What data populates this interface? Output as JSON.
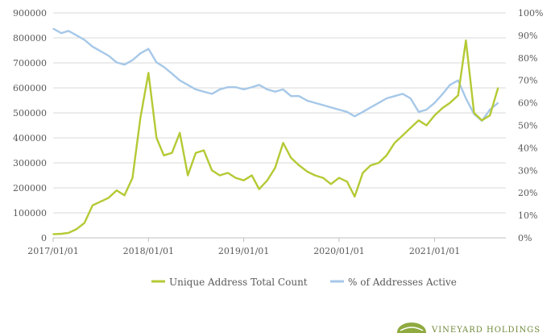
{
  "chart_data": {
    "type": "line",
    "title": "",
    "xlabel": "",
    "ylabel": "",
    "x_ticks": [
      "2017/01/01",
      "2018/01/01",
      "2019/01/01",
      "2020/01/01",
      "2021/01/01"
    ],
    "x_range": [
      "2017/01/01",
      "2021/10/01"
    ],
    "ylim_left": [
      0,
      900000
    ],
    "left_ticks": [
      "0",
      "100000",
      "200000",
      "300000",
      "400000",
      "500000",
      "600000",
      "700000",
      "800000",
      "900000"
    ],
    "ylim_right": [
      0,
      100
    ],
    "right_ticks": [
      "0%",
      "10%",
      "20%",
      "30%",
      "40%",
      "50%",
      "60%",
      "70%",
      "80%",
      "90%",
      "100%"
    ],
    "grid": "horizontal",
    "legend_position": "bottom",
    "series": [
      {
        "name": "Unique Address Total Count",
        "axis": "left",
        "color": "#b5c934",
        "points": [
          [
            "2017/01/01",
            15000
          ],
          [
            "2017/02/01",
            16000
          ],
          [
            "2017/03/01",
            20000
          ],
          [
            "2017/04/01",
            35000
          ],
          [
            "2017/05/01",
            60000
          ],
          [
            "2017/06/01",
            130000
          ],
          [
            "2017/07/01",
            145000
          ],
          [
            "2017/08/01",
            160000
          ],
          [
            "2017/09/01",
            190000
          ],
          [
            "2017/10/01",
            170000
          ],
          [
            "2017/11/01",
            240000
          ],
          [
            "2017/12/01",
            480000
          ],
          [
            "2018/01/01",
            660000
          ],
          [
            "2018/02/01",
            400000
          ],
          [
            "2018/03/01",
            330000
          ],
          [
            "2018/04/01",
            340000
          ],
          [
            "2018/05/01",
            420000
          ],
          [
            "2018/06/01",
            250000
          ],
          [
            "2018/07/01",
            340000
          ],
          [
            "2018/08/01",
            350000
          ],
          [
            "2018/09/01",
            270000
          ],
          [
            "2018/10/01",
            250000
          ],
          [
            "2018/11/01",
            260000
          ],
          [
            "2018/12/01",
            240000
          ],
          [
            "2019/01/01",
            230000
          ],
          [
            "2019/02/01",
            250000
          ],
          [
            "2019/03/01",
            195000
          ],
          [
            "2019/04/01",
            230000
          ],
          [
            "2019/05/01",
            280000
          ],
          [
            "2019/06/01",
            380000
          ],
          [
            "2019/07/01",
            320000
          ],
          [
            "2019/08/01",
            290000
          ],
          [
            "2019/09/01",
            265000
          ],
          [
            "2019/10/01",
            250000
          ],
          [
            "2019/11/01",
            240000
          ],
          [
            "2019/12/01",
            215000
          ],
          [
            "2020/01/01",
            240000
          ],
          [
            "2020/02/01",
            225000
          ],
          [
            "2020/03/01",
            165000
          ],
          [
            "2020/04/01",
            260000
          ],
          [
            "2020/05/01",
            290000
          ],
          [
            "2020/06/01",
            300000
          ],
          [
            "2020/07/01",
            330000
          ],
          [
            "2020/08/01",
            380000
          ],
          [
            "2020/09/01",
            410000
          ],
          [
            "2020/10/01",
            440000
          ],
          [
            "2020/11/01",
            470000
          ],
          [
            "2020/12/01",
            450000
          ],
          [
            "2021/01/01",
            490000
          ],
          [
            "2021/02/01",
            520000
          ],
          [
            "2021/03/01",
            540000
          ],
          [
            "2021/04/01",
            570000
          ],
          [
            "2021/05/01",
            790000
          ],
          [
            "2021/06/01",
            500000
          ],
          [
            "2021/07/01",
            470000
          ],
          [
            "2021/08/01",
            490000
          ],
          [
            "2021/09/01",
            600000
          ]
        ]
      },
      {
        "name": "% of Addresses Active",
        "axis": "right",
        "color": "#a6c8e8",
        "points": [
          [
            "2017/01/01",
            93
          ],
          [
            "2017/02/01",
            91
          ],
          [
            "2017/03/01",
            92
          ],
          [
            "2017/04/01",
            90
          ],
          [
            "2017/05/01",
            88
          ],
          [
            "2017/06/01",
            85
          ],
          [
            "2017/07/01",
            83
          ],
          [
            "2017/08/01",
            81
          ],
          [
            "2017/09/01",
            78
          ],
          [
            "2017/10/01",
            77
          ],
          [
            "2017/11/01",
            79
          ],
          [
            "2017/12/01",
            82
          ],
          [
            "2018/01/01",
            84
          ],
          [
            "2018/02/01",
            78
          ],
          [
            "2018/03/01",
            76
          ],
          [
            "2018/04/01",
            73
          ],
          [
            "2018/05/01",
            70
          ],
          [
            "2018/06/01",
            68
          ],
          [
            "2018/07/01",
            66
          ],
          [
            "2018/08/01",
            65
          ],
          [
            "2018/09/01",
            64
          ],
          [
            "2018/10/01",
            66
          ],
          [
            "2018/11/01",
            67
          ],
          [
            "2018/12/01",
            67
          ],
          [
            "2019/01/01",
            66
          ],
          [
            "2019/02/01",
            67
          ],
          [
            "2019/03/01",
            68
          ],
          [
            "2019/04/01",
            66
          ],
          [
            "2019/05/01",
            65
          ],
          [
            "2019/06/01",
            66
          ],
          [
            "2019/07/01",
            63
          ],
          [
            "2019/08/01",
            63
          ],
          [
            "2019/09/01",
            61
          ],
          [
            "2019/10/01",
            60
          ],
          [
            "2019/11/01",
            59
          ],
          [
            "2019/12/01",
            58
          ],
          [
            "2020/01/01",
            57
          ],
          [
            "2020/02/01",
            56
          ],
          [
            "2020/03/01",
            54
          ],
          [
            "2020/04/01",
            56
          ],
          [
            "2020/05/01",
            58
          ],
          [
            "2020/06/01",
            60
          ],
          [
            "2020/07/01",
            62
          ],
          [
            "2020/08/01",
            63
          ],
          [
            "2020/09/01",
            64
          ],
          [
            "2020/10/01",
            62
          ],
          [
            "2020/11/01",
            56
          ],
          [
            "2020/12/01",
            57
          ],
          [
            "2021/01/01",
            60
          ],
          [
            "2021/02/01",
            64
          ],
          [
            "2021/03/01",
            68
          ],
          [
            "2021/04/01",
            70
          ],
          [
            "2021/05/01",
            62
          ],
          [
            "2021/06/01",
            55
          ],
          [
            "2021/07/01",
            52
          ],
          [
            "2021/08/01",
            57
          ],
          [
            "2021/09/01",
            60
          ]
        ]
      }
    ]
  },
  "logo": {
    "text": "VINEYARD HOLDINGS",
    "color": "#6f8a3a"
  }
}
